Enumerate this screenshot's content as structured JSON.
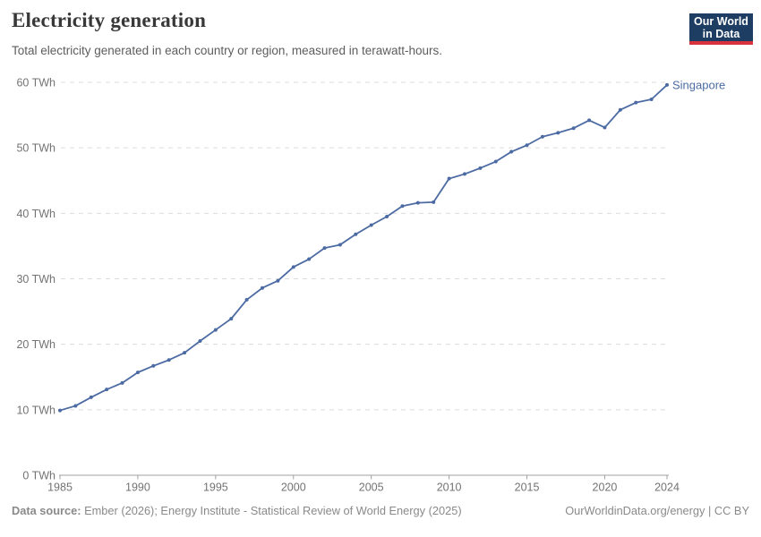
{
  "header": {
    "title": "Electricity generation",
    "subtitle": "Total electricity generated in each country or region, measured in terawatt-hours.",
    "logo": {
      "line1": "Our World",
      "line2": "in Data",
      "bg_color": "#1d3d63",
      "accent_color": "#d8333c"
    }
  },
  "chart_data": {
    "type": "line",
    "title": "Electricity generation",
    "xlabel": "",
    "ylabel": "TWh",
    "x_range": [
      1985,
      2024
    ],
    "ylim": [
      0,
      60
    ],
    "grid": "horizontal-dashed",
    "legend": "line-end-label",
    "colors": {
      "line": "#4c6ba3",
      "grid": "#dcdcdc",
      "axis": "#a0a0a0",
      "tick_text": "#737373"
    },
    "yticks": [
      {
        "value": 0,
        "label": "0 TWh"
      },
      {
        "value": 10,
        "label": "10 TWh"
      },
      {
        "value": 20,
        "label": "20 TWh"
      },
      {
        "value": 30,
        "label": "30 TWh"
      },
      {
        "value": 40,
        "label": "40 TWh"
      },
      {
        "value": 50,
        "label": "50 TWh"
      },
      {
        "value": 60,
        "label": "60 TWh"
      }
    ],
    "xticks": [
      {
        "value": 1985,
        "label": "1985"
      },
      {
        "value": 1990,
        "label": "1990"
      },
      {
        "value": 1995,
        "label": "1995"
      },
      {
        "value": 2000,
        "label": "2000"
      },
      {
        "value": 2005,
        "label": "2005"
      },
      {
        "value": 2010,
        "label": "2010"
      },
      {
        "value": 2015,
        "label": "2015"
      },
      {
        "value": 2020,
        "label": "2020"
      },
      {
        "value": 2024,
        "label": "2024"
      }
    ],
    "series": [
      {
        "name": "Singapore",
        "color": "#4c6ba3",
        "x": [
          1985,
          1986,
          1987,
          1988,
          1989,
          1990,
          1991,
          1992,
          1993,
          1994,
          1995,
          1996,
          1997,
          1998,
          1999,
          2000,
          2001,
          2002,
          2003,
          2004,
          2005,
          2006,
          2007,
          2008,
          2009,
          2010,
          2011,
          2012,
          2013,
          2014,
          2015,
          2016,
          2017,
          2018,
          2019,
          2020,
          2021,
          2022,
          2023,
          2024
        ],
        "values": [
          9.9,
          10.6,
          11.9,
          13.1,
          14.1,
          15.7,
          16.7,
          17.6,
          18.7,
          20.5,
          22.2,
          23.9,
          26.8,
          28.6,
          29.7,
          31.8,
          33.0,
          34.7,
          35.2,
          36.8,
          38.2,
          39.5,
          41.1,
          41.6,
          41.7,
          45.3,
          46.0,
          46.9,
          47.9,
          49.4,
          50.4,
          51.7,
          52.3,
          53.0,
          54.2,
          53.1,
          55.8,
          56.9,
          57.4,
          59.6
        ]
      }
    ]
  },
  "footer": {
    "source_label": "Data source:",
    "source_text": " Ember (2026); Energy Institute - Statistical Review of World Energy (2025)",
    "right_text": "OurWorldinData.org/energy | CC BY"
  }
}
